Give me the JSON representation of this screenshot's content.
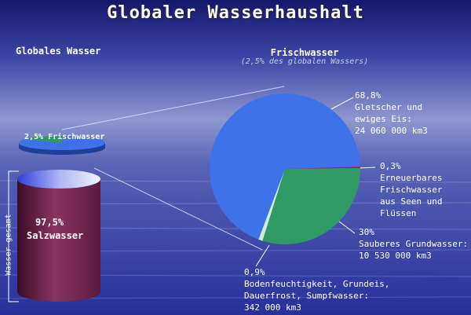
{
  "title": "Globaler Wasserhaushalt",
  "left_title": "Globales Wasser",
  "right_title": "Frischwasser",
  "right_subtitle": "(2,5% des globalen Wassers)",
  "mini_pie_label": "2,5% Frischwasser",
  "cylinder": {
    "percent": "97,5%",
    "name": "Salzwasser"
  },
  "side_label": "Wasser gesamt",
  "colors": {
    "glacier": "#3f72e8",
    "renewable": "#b81e1e",
    "ground": "#2f9a64",
    "soil": "#cdeedb",
    "salt": "#772750"
  },
  "chart_data": {
    "type": "pie",
    "title": "Frischwasser",
    "subtitle": "(2,5% des globalen Wassers)",
    "slices": [
      {
        "label": "Gletscher und ewiges Eis",
        "value": 68.8,
        "percent_label": "68,8%",
        "lines": [
          "68,8%",
          "Gletscher und",
          "ewiges Eis:",
          "24 060 000 km3"
        ],
        "color": "#3f72e8"
      },
      {
        "label": "Erneuerbares Frischwasser aus Seen und Flüssen",
        "value": 0.3,
        "percent_label": "0,3%",
        "lines": [
          "0,3%",
          "Erneuerbares",
          "Frischwasser",
          "aus Seen und",
          "Flüssen"
        ],
        "color": "#b81e1e"
      },
      {
        "label": "Sauberes Grundwasser",
        "value": 30,
        "percent_label": "30%",
        "lines": [
          "30%",
          "Sauberes Grundwasser:",
          "10 530 000 km3"
        ],
        "color": "#2f9a64"
      },
      {
        "label": "Bodenfeuchtigkeit, Grundeis, Dauerfrost, Sumpfwasser",
        "value": 0.9,
        "percent_label": "0,9%",
        "lines": [
          "0,9%",
          "Bodenfeuchtigkeit, Grundeis,",
          "Dauerfrost, Sumpfwasser:",
          "342 000 km3"
        ],
        "color": "#cdeedb"
      }
    ],
    "global_water": [
      {
        "label": "Frischwasser",
        "value": 2.5
      },
      {
        "label": "Salzwasser",
        "value": 97.5
      }
    ]
  }
}
